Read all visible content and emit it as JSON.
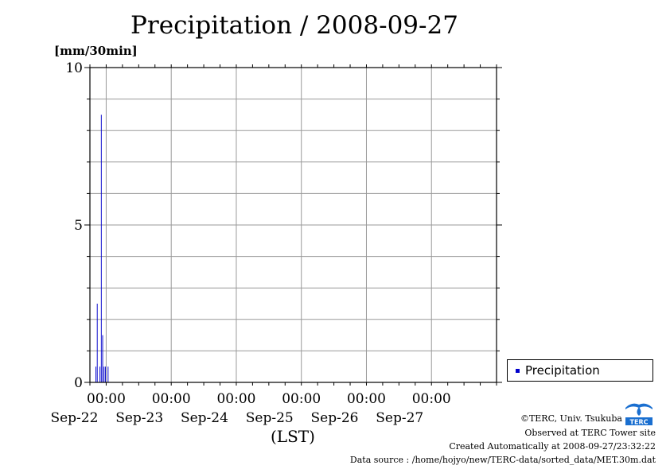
{
  "chart_data": {
    "type": "bar",
    "title": "Precipitation / 2008-09-27",
    "ylabel": "[mm/30min]",
    "xlabel": "(LST)",
    "ylim": [
      0,
      10
    ],
    "xlim": [
      "2008-09-21T18:00",
      "2008-09-28T00:00"
    ],
    "yticks": [
      "0",
      "5",
      "10"
    ],
    "xticks": [
      {
        "time": "00:00",
        "date": "Sep-22"
      },
      {
        "time": "00:00",
        "date": "Sep-23"
      },
      {
        "time": "00:00",
        "date": "Sep-24"
      },
      {
        "time": "00:00",
        "date": "Sep-25"
      },
      {
        "time": "00:00",
        "date": "Sep-26"
      },
      {
        "time": "00:00",
        "date": "Sep-27"
      }
    ],
    "grid": true,
    "series": [
      {
        "name": "Precipitation",
        "color": "#0000cc",
        "x": [
          "2008-09-21T18:00",
          "2008-09-21T18:30",
          "2008-09-21T19:30",
          "2008-09-21T20:00",
          "2008-09-21T20:30",
          "2008-09-21T21:00",
          "2008-09-21T21:30",
          "2008-09-21T22:30"
        ],
        "values": [
          0.5,
          2.5,
          0.5,
          8.5,
          1.5,
          0.5,
          0.5,
          0.5
        ]
      }
    ]
  },
  "legend": {
    "label": "Precipitation",
    "position": "right"
  },
  "credits": {
    "copyright": "©TERC, Univ. Tsukuba",
    "observed": "Observed at TERC Tower site",
    "created": "Created Automatically at 2008-09-27/23:32:22",
    "source": "Data source : /home/hojyo/new/TERC-data/sorted_data/MET.30m.dat"
  },
  "logo": {
    "text": "TERC",
    "color": "#1a6fd0"
  }
}
